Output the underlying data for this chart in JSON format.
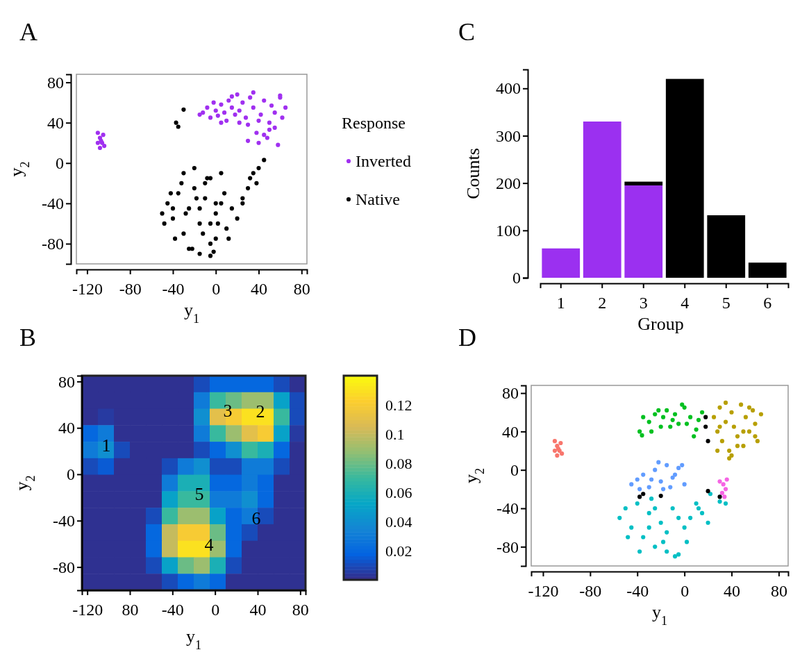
{
  "chart_data": [
    {
      "type": "scatter",
      "title": "A",
      "xlabel": "y$_{1}$",
      "ylabel": "y$_{2}$",
      "legend_title": "Response",
      "legend": "right",
      "marker": "circle",
      "xlim": [
        -130,
        85
      ],
      "ylim": [
        -100,
        88
      ],
      "xticks": [
        -120,
        -80,
        -40,
        0,
        40,
        80
      ],
      "yticks": [
        -80,
        -40,
        0,
        40,
        80
      ],
      "series": [
        {
          "name": "Inverted",
          "color": "#a030f0",
          "x": [
            -110,
            -108,
            -106,
            -104,
            -107,
            -105,
            -110,
            -108,
            -12,
            -8,
            -5,
            -2,
            0,
            2,
            5,
            8,
            10,
            12,
            15,
            18,
            20,
            22,
            25,
            28,
            30,
            32,
            35,
            38,
            40,
            42,
            45,
            48,
            50,
            52,
            55,
            58,
            60,
            62,
            65,
            -15,
            5,
            15,
            35,
            45,
            55,
            30,
            40,
            50,
            22,
            60
          ],
          "values": [
            30,
            25,
            20,
            17,
            22,
            28,
            20,
            15,
            50,
            55,
            45,
            60,
            52,
            47,
            58,
            50,
            42,
            62,
            55,
            48,
            68,
            52,
            60,
            45,
            38,
            65,
            55,
            30,
            20,
            48,
            62,
            25,
            40,
            57,
            35,
            18,
            65,
            45,
            55,
            48,
            40,
            66,
            70,
            28,
            50,
            22,
            42,
            33,
            40,
            67
          ]
        },
        {
          "name": "Native",
          "color": "#000000",
          "x": [
            -30,
            -37,
            -35,
            -50,
            -45,
            -40,
            -35,
            -30,
            -25,
            -20,
            -15,
            -10,
            -5,
            0,
            5,
            10,
            15,
            20,
            -48,
            -42,
            -38,
            -32,
            -28,
            -22,
            -18,
            -12,
            -8,
            -2,
            2,
            8,
            12,
            -30,
            -20,
            -10,
            0,
            -25,
            -15,
            -5,
            5,
            -5,
            0,
            -40,
            25,
            30,
            32,
            35,
            38,
            40,
            45,
            25,
            -15,
            -5
          ],
          "values": [
            53,
            40,
            36,
            -50,
            -40,
            -55,
            -30,
            -70,
            -45,
            -25,
            -60,
            -35,
            -80,
            -50,
            -40,
            -65,
            -45,
            -55,
            -60,
            -30,
            -75,
            -20,
            -50,
            -85,
            -35,
            -70,
            -15,
            -88,
            -60,
            -30,
            -75,
            -10,
            -5,
            -20,
            -40,
            -85,
            -90,
            -60,
            -10,
            -92,
            -75,
            -45,
            -35,
            -25,
            -15,
            -10,
            -20,
            -5,
            3,
            -40,
            -45,
            -15
          ]
        }
      ]
    },
    {
      "type": "heatmap",
      "title": "B",
      "xlabel": "y$_{1}$",
      "ylabel": "y$_{2}$",
      "xlim": [
        -125,
        85
      ],
      "ylim": [
        -100,
        85
      ],
      "xticks": [
        -120,
        {
          "value": -80,
          "label": "80"
        },
        -40,
        0,
        40,
        80
      ],
      "yticks": [
        -80,
        -40,
        0,
        40,
        80
      ],
      "clim": [
        0,
        0.14
      ],
      "cticks": [
        0.02,
        0.04,
        0.06,
        0.08,
        0.1,
        0.12
      ],
      "x": [
        -117.5,
        -102.5,
        -87.5,
        -72.5,
        -57.5,
        -42.5,
        -27.5,
        -12.5,
        2.5,
        17.5,
        32.5,
        47.5,
        62.5,
        77.5
      ],
      "cells": [
        [
          0.002,
          0.002,
          0.002,
          0.002,
          0.002,
          0.002,
          0.002,
          0.01,
          0.02,
          0.02,
          0.02,
          0.02,
          0.01,
          0.002
        ],
        [
          0.002,
          0.002,
          0.002,
          0.002,
          0.002,
          0.002,
          0.002,
          0.03,
          0.07,
          0.08,
          0.09,
          0.09,
          0.05,
          0.01
        ],
        [
          0.002,
          0.005,
          0.002,
          0.002,
          0.002,
          0.002,
          0.002,
          0.04,
          0.11,
          0.12,
          0.13,
          0.13,
          0.07,
          0.01
        ],
        [
          0.02,
          0.03,
          0.002,
          0.002,
          0.002,
          0.002,
          0.002,
          0.03,
          0.07,
          0.09,
          0.11,
          0.12,
          0.05,
          0.005
        ],
        [
          0.03,
          0.04,
          0.01,
          0.002,
          0.002,
          0.002,
          0.002,
          0.01,
          0.02,
          0.04,
          0.07,
          0.06,
          0.02,
          0.002
        ],
        [
          0.01,
          0.015,
          0.002,
          0.002,
          0.002,
          0.01,
          0.03,
          0.04,
          0.01,
          0.01,
          0.03,
          0.03,
          0.01,
          0.002
        ],
        [
          0.002,
          0.002,
          0.002,
          0.002,
          0.002,
          0.03,
          0.06,
          0.06,
          0.02,
          0.02,
          0.03,
          0.02,
          0.002,
          0.002
        ],
        [
          0.002,
          0.002,
          0.002,
          0.002,
          0.002,
          0.05,
          0.07,
          0.07,
          0.03,
          0.03,
          0.04,
          0.02,
          0.002,
          0.002
        ],
        [
          0.002,
          0.002,
          0.002,
          0.002,
          0.01,
          0.07,
          0.09,
          0.09,
          0.05,
          0.02,
          0.03,
          0.01,
          0.002,
          0.002
        ],
        [
          0.002,
          0.002,
          0.002,
          0.002,
          0.02,
          0.1,
          0.12,
          0.12,
          0.08,
          0.02,
          0.01,
          0.002,
          0.002,
          0.002
        ],
        [
          0.002,
          0.002,
          0.002,
          0.002,
          0.02,
          0.1,
          0.13,
          0.13,
          0.09,
          0.02,
          0.002,
          0.002,
          0.002,
          0.002
        ],
        [
          0.002,
          0.002,
          0.002,
          0.002,
          0.01,
          0.05,
          0.08,
          0.09,
          0.06,
          0.01,
          0.002,
          0.002,
          0.002,
          0.002
        ],
        [
          0.002,
          0.002,
          0.002,
          0.002,
          0.002,
          0.01,
          0.02,
          0.03,
          0.02,
          0.002,
          0.002,
          0.002,
          0.002,
          0.002
        ]
      ],
      "annotations": [
        "1",
        "3",
        "2",
        "5",
        "6",
        "4"
      ]
    },
    {
      "type": "bar",
      "title": "C",
      "xlabel": "Group",
      "ylabel": "Counts",
      "stacked": true,
      "categories": [
        "1",
        "2",
        "3",
        "4",
        "5",
        "6"
      ],
      "ylim": [
        0,
        440
      ],
      "yticks": [
        0,
        100,
        200,
        300,
        400
      ],
      "series": [
        {
          "color": "#9b30f0",
          "values": [
            62,
            330,
            195,
            0,
            0,
            0
          ]
        },
        {
          "color": "#000000",
          "values": [
            0,
            0,
            8,
            420,
            132,
            32
          ]
        }
      ]
    },
    {
      "type": "scatter",
      "title": "D",
      "xlabel": "y$_{1}$",
      "ylabel": "y$_{2}$",
      "marker": "circle",
      "xlim": [
        -130,
        88
      ],
      "ylim": [
        -100,
        88
      ],
      "xticks": [
        -120,
        -80,
        -40,
        0,
        40,
        80
      ],
      "yticks": [
        -80,
        -40,
        0,
        40,
        80
      ],
      "series": [
        {
          "color": "#f8766d",
          "x": [
            -110,
            -108,
            -106,
            -104,
            -107,
            -105,
            -110,
            -108
          ],
          "values": [
            30,
            25,
            20,
            17,
            22,
            28,
            20,
            15
          ]
        },
        {
          "color": "#00c020",
          "x": [
            -35,
            -30,
            -25,
            -20,
            -15,
            -10,
            -5,
            0,
            5,
            10,
            15,
            -28,
            -18,
            -8,
            2,
            12,
            -22,
            -12,
            -2,
            8,
            -38,
            -36
          ],
          "values": [
            55,
            50,
            58,
            45,
            62,
            52,
            48,
            65,
            55,
            42,
            60,
            40,
            55,
            58,
            48,
            52,
            62,
            45,
            68,
            35,
            40,
            36
          ]
        },
        {
          "color": "#b79f00",
          "x": [
            25,
            28,
            30,
            32,
            35,
            38,
            40,
            42,
            45,
            48,
            50,
            52,
            55,
            58,
            60,
            62,
            65,
            30,
            40,
            50,
            35,
            45,
            55,
            60,
            28,
            38
          ],
          "values": [
            55,
            40,
            65,
            30,
            50,
            20,
            60,
            45,
            35,
            68,
            25,
            55,
            40,
            62,
            48,
            30,
            58,
            45,
            15,
            40,
            70,
            25,
            65,
            35,
            20,
            12
          ]
        },
        {
          "color": "#619cff",
          "x": [
            -45,
            -40,
            -35,
            -30,
            -25,
            -20,
            -15,
            -10,
            -5,
            0,
            -38,
            -28,
            -18,
            -8,
            -22,
            -12,
            -2
          ],
          "values": [
            -15,
            -10,
            -5,
            -18,
            0,
            -12,
            5,
            -8,
            2,
            -15,
            -20,
            -10,
            -20,
            -5,
            8,
            -18,
            5
          ]
        },
        {
          "color": "#00bfc4",
          "x": [
            -55,
            -50,
            -45,
            -40,
            -35,
            -30,
            -25,
            -20,
            -15,
            -10,
            -5,
            0,
            5,
            10,
            15,
            20,
            -48,
            -38,
            -28,
            -18,
            -8,
            2,
            12,
            -30,
            -15,
            -5,
            -25,
            30,
            35,
            22
          ],
          "values": [
            -50,
            -40,
            -60,
            -35,
            -70,
            -45,
            -80,
            -55,
            -65,
            -40,
            -88,
            -60,
            -50,
            -35,
            -45,
            -55,
            -70,
            -85,
            -30,
            -75,
            -90,
            -75,
            -40,
            -60,
            -85,
            -50,
            -40,
            -33,
            -35,
            -25
          ]
        },
        {
          "color": "#f564e3",
          "x": [
            30,
            33,
            35,
            32,
            36,
            34
          ],
          "values": [
            -12,
            -15,
            -20,
            -24,
            -10,
            -28
          ]
        },
        {
          "color": "#000000",
          "x": [
            18,
            18,
            20,
            -38,
            -35,
            -20,
            30,
            20
          ],
          "values": [
            55,
            45,
            30,
            -28,
            -25,
            -27,
            -28,
            -22
          ]
        }
      ]
    }
  ]
}
